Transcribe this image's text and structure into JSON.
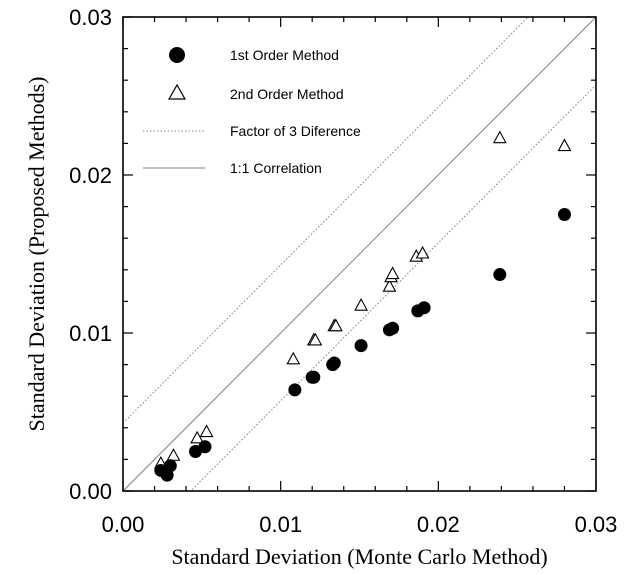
{
  "chart_data": {
    "type": "scatter",
    "title": "",
    "xlabel": "Standard Deviation (Monte Carlo Method)",
    "ylabel": "Standard Deviation (Proposed Methods)",
    "xlim": [
      0,
      0.03
    ],
    "ylim": [
      0,
      0.03
    ],
    "xticks": [
      "0.00",
      "0.01",
      "0.02",
      "0.03"
    ],
    "yticks": [
      "0.00",
      "0.01",
      "0.02",
      "0.03"
    ],
    "grid": false,
    "legend_position": "top-left",
    "series": [
      {
        "name": "1st Order Method",
        "marker": "filled-circle",
        "color": "#000000",
        "x": [
          0.0024,
          0.0028,
          0.003,
          0.0046,
          0.0052,
          0.0109,
          0.012,
          0.0121,
          0.0133,
          0.0134,
          0.0151,
          0.0169,
          0.0171,
          0.0187,
          0.0191,
          0.0239,
          0.028
        ],
        "y": [
          0.0013,
          0.001,
          0.0016,
          0.0025,
          0.0028,
          0.0064,
          0.0072,
          0.0072,
          0.008,
          0.0081,
          0.0092,
          0.0102,
          0.0103,
          0.0114,
          0.0116,
          0.0137,
          0.0175
        ]
      },
      {
        "name": "2nd Order Method",
        "marker": "open-triangle",
        "color": "#000000",
        "x": [
          0.0024,
          0.0032,
          0.0047,
          0.0053,
          0.0108,
          0.0121,
          0.0122,
          0.0134,
          0.0135,
          0.0151,
          0.0169,
          0.017,
          0.0171,
          0.0186,
          0.019,
          0.0239,
          0.028
        ],
        "y": [
          0.0017,
          0.0022,
          0.0033,
          0.0037,
          0.0083,
          0.0095,
          0.0095,
          0.0104,
          0.0104,
          0.0117,
          0.0129,
          0.0135,
          0.0137,
          0.0148,
          0.015,
          0.0223,
          0.0218
        ]
      },
      {
        "name": "Factor of 3 Diference",
        "type": "line",
        "style": "dotted",
        "color": "#808080",
        "segments": [
          {
            "x": [
              0,
              0.03
            ],
            "y": [
              0.0043,
              0.0343
            ]
          },
          {
            "x": [
              0,
              0.03
            ],
            "y": [
              -0.0043,
              0.0257
            ]
          }
        ]
      },
      {
        "name": "1:1 Correlation",
        "type": "line",
        "style": "solid",
        "color": "#808080",
        "segments": [
          {
            "x": [
              0,
              0.03
            ],
            "y": [
              0,
              0.03
            ]
          }
        ]
      }
    ]
  }
}
